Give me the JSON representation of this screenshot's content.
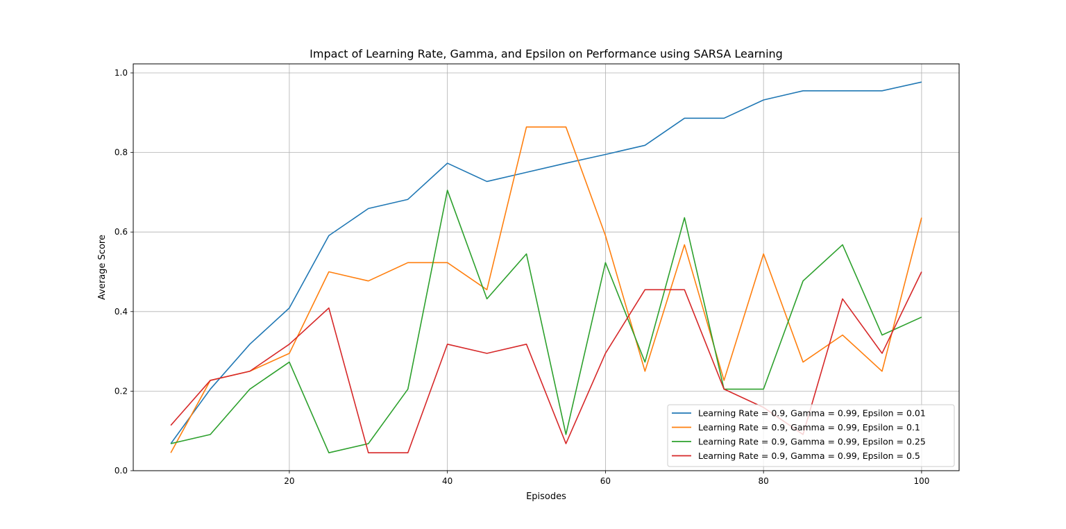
{
  "chart_data": {
    "type": "line",
    "title": "Impact of Learning Rate, Gamma, and Epsilon on Performance using SARSA Learning",
    "xlabel": "Episodes",
    "ylabel": "Average Score",
    "xlim": [
      0.25,
      104.75
    ],
    "ylim": [
      0.0,
      1.0227
    ],
    "xticks": [
      20,
      40,
      60,
      80,
      100
    ],
    "xtick_labels": [
      "20",
      "40",
      "60",
      "80",
      "100"
    ],
    "yticks": [
      0.0,
      0.2,
      0.4,
      0.6,
      0.8,
      1.0
    ],
    "ytick_labels": [
      "0.0",
      "0.2",
      "0.4",
      "0.6",
      "0.8",
      "1.0"
    ],
    "grid": true,
    "legend_position": "lower-right",
    "x": [
      5,
      10,
      15,
      20,
      25,
      30,
      35,
      40,
      45,
      50,
      55,
      60,
      65,
      70,
      75,
      80,
      85,
      90,
      95,
      100
    ],
    "series": [
      {
        "name": "Learning Rate = 0.9, Gamma = 0.99, Epsilon = 0.01",
        "color": "#1f77b4",
        "values": [
          0.068,
          0.205,
          0.318,
          0.409,
          0.591,
          0.659,
          0.682,
          0.773,
          0.727,
          0.75,
          0.773,
          0.795,
          0.818,
          0.886,
          0.886,
          0.932,
          0.955,
          0.955,
          0.955,
          0.977
        ]
      },
      {
        "name": "Learning Rate = 0.9, Gamma = 0.99, Epsilon = 0.1",
        "color": "#ff7f0e",
        "values": [
          0.045,
          0.227,
          0.25,
          0.295,
          0.5,
          0.477,
          0.523,
          0.523,
          0.455,
          0.864,
          0.864,
          0.591,
          0.25,
          0.568,
          0.227,
          0.545,
          0.273,
          0.341,
          0.25,
          0.636
        ]
      },
      {
        "name": "Learning Rate = 0.9, Gamma = 0.99, Epsilon = 0.25",
        "color": "#2ca02c",
        "values": [
          0.068,
          0.091,
          0.205,
          0.273,
          0.045,
          0.068,
          0.205,
          0.705,
          0.432,
          0.545,
          0.091,
          0.523,
          0.273,
          0.636,
          0.205,
          0.205,
          0.477,
          0.568,
          0.341,
          0.386
        ]
      },
      {
        "name": "Learning Rate = 0.9, Gamma = 0.99, Epsilon = 0.5",
        "color": "#d62728",
        "values": [
          0.114,
          0.227,
          0.25,
          0.318,
          0.409,
          0.045,
          0.045,
          0.318,
          0.295,
          0.318,
          0.068,
          0.295,
          0.455,
          0.455,
          0.205,
          0.159,
          0.091,
          0.432,
          0.295,
          0.5
        ]
      }
    ]
  }
}
